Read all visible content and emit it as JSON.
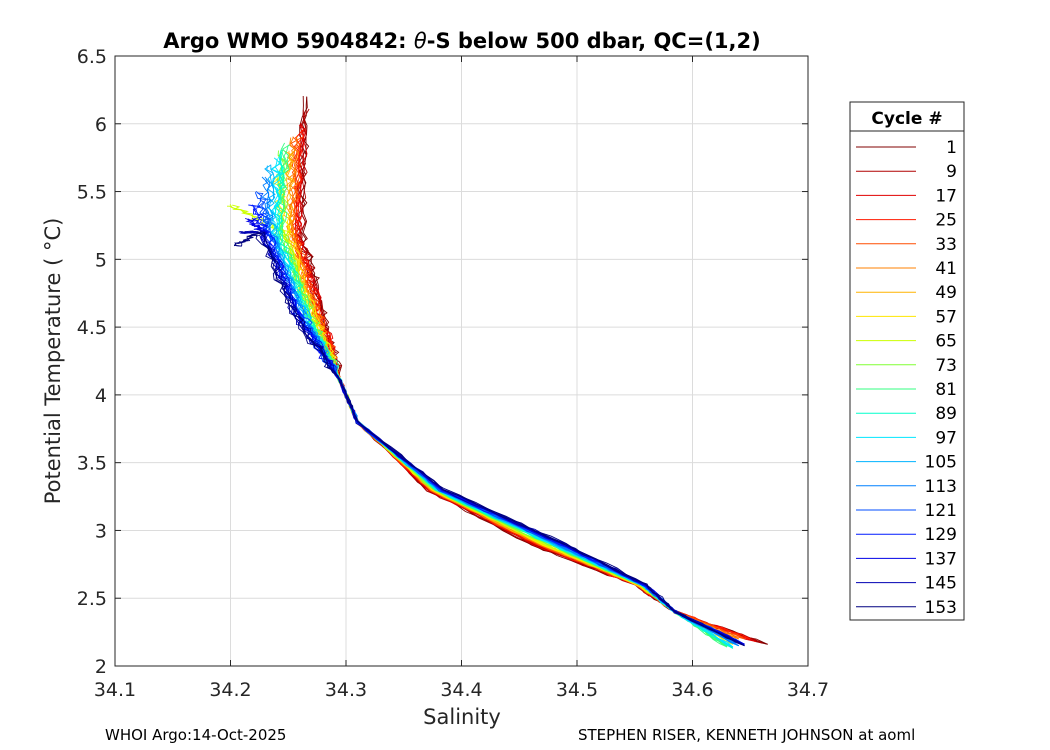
{
  "chart_data": {
    "type": "line",
    "title_prefix": "Argo WMO 5904842: ",
    "title_theta": "θ",
    "title_suffix": "-S below 500 dbar,  QC=(1,2)",
    "xlabel": "Salinity",
    "ylabel": "Potential Temperature ( °C)",
    "xlim": [
      34.1,
      34.7
    ],
    "ylim": [
      2,
      6.5
    ],
    "xticks": [
      "34.1",
      "34.2",
      "34.3",
      "34.4",
      "34.5",
      "34.6",
      "34.7"
    ],
    "yticks": [
      "2",
      "2.5",
      "3",
      "3.5",
      "4",
      "4.5",
      "5",
      "5.5",
      "6",
      "6.5"
    ],
    "grid": true,
    "legend_title": "Cycle #",
    "legend_position": "right-outside",
    "series": [
      {
        "name": "1",
        "color": "#800000",
        "start": [
          34.265,
          6.2
        ],
        "end": [
          34.665,
          2.16
        ]
      },
      {
        "name": "9",
        "color": "#b00000",
        "start": [
          34.263,
          6.1
        ],
        "end": [
          34.66,
          2.17
        ]
      },
      {
        "name": "17",
        "color": "#e00000",
        "start": [
          34.262,
          6.0
        ],
        "end": [
          34.655,
          2.18
        ]
      },
      {
        "name": "25",
        "color": "#ff1a00",
        "start": [
          34.26,
          5.95
        ],
        "end": [
          34.65,
          2.2
        ]
      },
      {
        "name": "33",
        "color": "#ff4d00",
        "start": [
          34.258,
          5.9
        ],
        "end": [
          34.645,
          2.2
        ]
      },
      {
        "name": "41",
        "color": "#ff8000",
        "start": [
          34.255,
          5.9
        ],
        "end": [
          34.64,
          2.2
        ]
      },
      {
        "name": "49",
        "color": "#ffb300",
        "start": [
          34.25,
          5.8
        ],
        "end": [
          34.64,
          2.18
        ]
      },
      {
        "name": "57",
        "color": "#ffe600",
        "start": [
          34.24,
          5.6
        ],
        "end": [
          34.635,
          2.16
        ]
      },
      {
        "name": "65",
        "color": "#ccff00",
        "start": [
          34.2,
          5.4
        ],
        "end": [
          34.63,
          2.15
        ]
      },
      {
        "name": "73",
        "color": "#80ff33",
        "start": [
          34.245,
          5.8
        ],
        "end": [
          34.63,
          2.15
        ]
      },
      {
        "name": "81",
        "color": "#33ff80",
        "start": [
          34.248,
          5.85
        ],
        "end": [
          34.63,
          2.14
        ]
      },
      {
        "name": "89",
        "color": "#00ffcc",
        "start": [
          34.245,
          5.8
        ],
        "end": [
          34.635,
          2.13
        ]
      },
      {
        "name": "97",
        "color": "#00e6ff",
        "start": [
          34.24,
          5.75
        ],
        "end": [
          34.635,
          2.14
        ]
      },
      {
        "name": "105",
        "color": "#00b3ff",
        "start": [
          34.235,
          5.7
        ],
        "end": [
          34.64,
          2.15
        ]
      },
      {
        "name": "113",
        "color": "#0080ff",
        "start": [
          34.23,
          5.6
        ],
        "end": [
          34.64,
          2.15
        ]
      },
      {
        "name": "121",
        "color": "#004dff",
        "start": [
          34.225,
          5.5
        ],
        "end": [
          34.645,
          2.16
        ]
      },
      {
        "name": "129",
        "color": "#001aff",
        "start": [
          34.22,
          5.4
        ],
        "end": [
          34.645,
          2.16
        ]
      },
      {
        "name": "137",
        "color": "#0000e6",
        "start": [
          34.215,
          5.3
        ],
        "end": [
          34.645,
          2.16
        ]
      },
      {
        "name": "145",
        "color": "#0000b3",
        "start": [
          34.21,
          5.2
        ],
        "end": [
          34.645,
          2.15
        ]
      },
      {
        "name": "153",
        "color": "#000080",
        "start": [
          34.205,
          5.1
        ],
        "end": [
          34.645,
          2.15
        ]
      }
    ]
  },
  "footer": {
    "left": "WHOI Argo:14-Oct-2025",
    "right": "STEPHEN RISER, KENNETH JOHNSON at aoml"
  }
}
